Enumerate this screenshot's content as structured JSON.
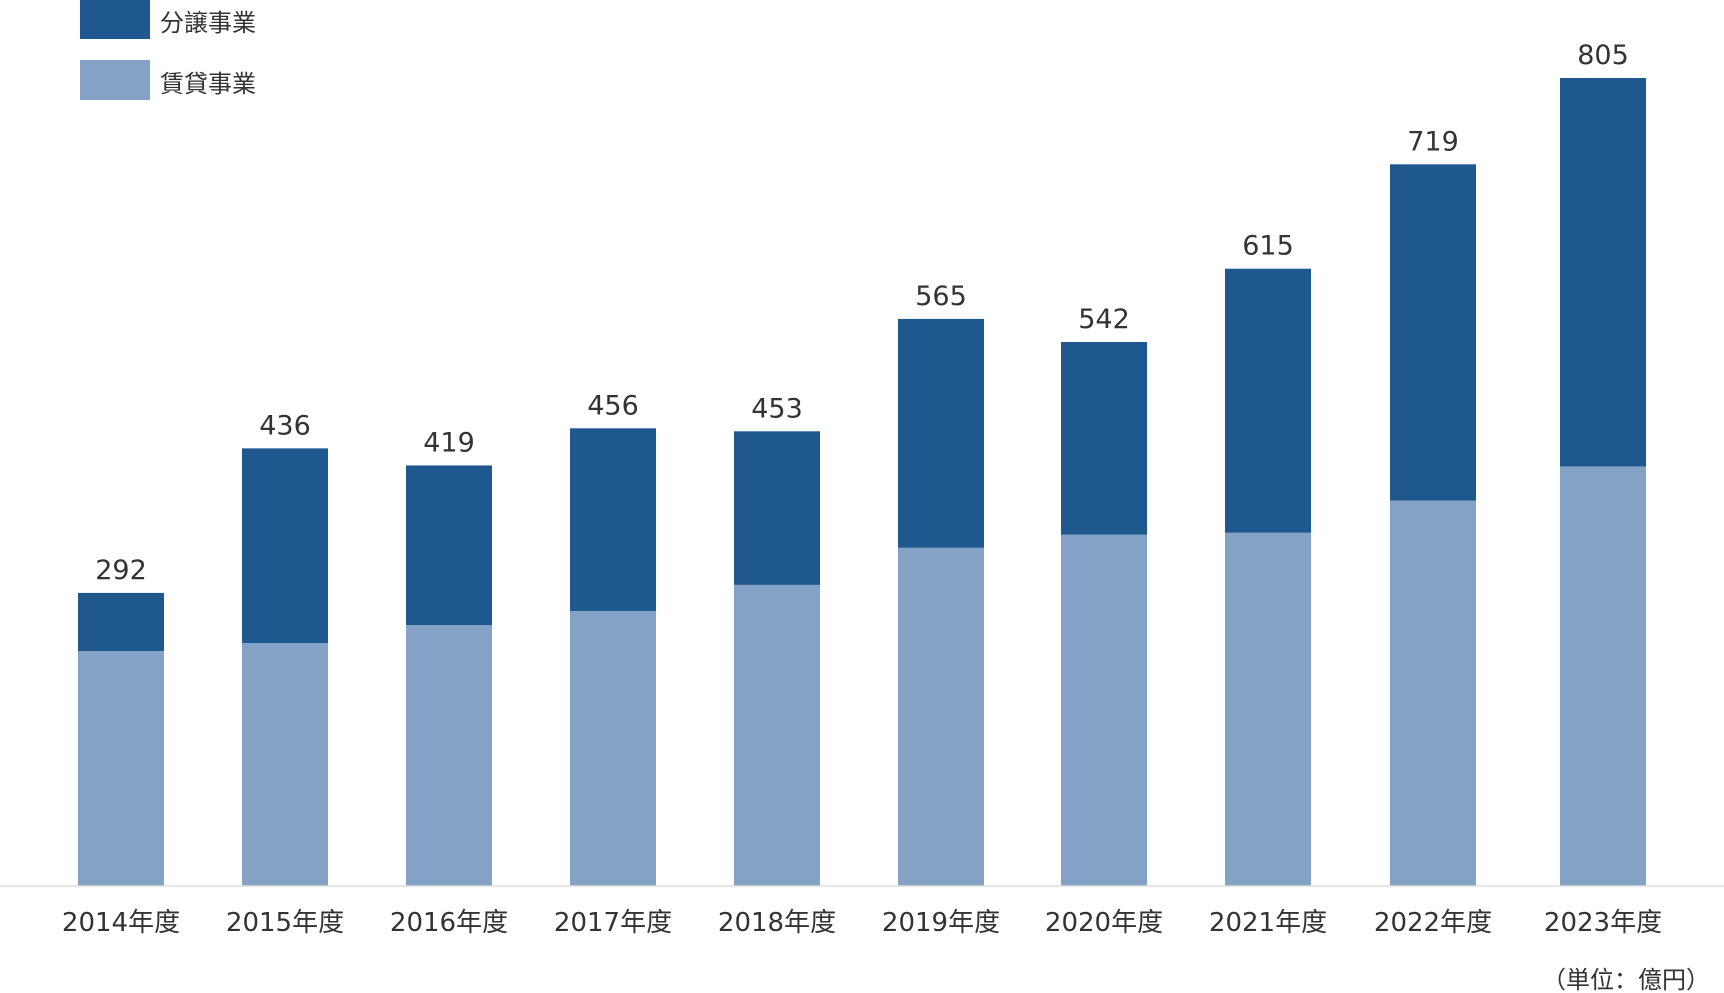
{
  "chart_data": {
    "type": "bar",
    "stacked": true,
    "unit": "（単位：億円）",
    "categories": [
      "2014年度",
      "2015年度",
      "2016年度",
      "2017年度",
      "2018年度",
      "2019年度",
      "2020年度",
      "2021年度",
      "2022年度",
      "2023年度"
    ],
    "totals": [
      292,
      436,
      419,
      456,
      453,
      565,
      542,
      615,
      719,
      805
    ],
    "series": [
      {
        "name": "賃貸事業",
        "color": "#84a2c6",
        "values": [
          234,
          242,
          260,
          274,
          300,
          337,
          350,
          352,
          384,
          418
        ]
      },
      {
        "name": "分譲事業",
        "color": "#1f578f",
        "values": [
          58,
          194,
          159,
          182,
          153,
          228,
          192,
          263,
          335,
          387
        ]
      }
    ],
    "legend": [
      "分譲事業",
      "賃貸事業"
    ],
    "legend_position": "top-left",
    "ylim": [
      0,
      805
    ],
    "grid": false
  }
}
